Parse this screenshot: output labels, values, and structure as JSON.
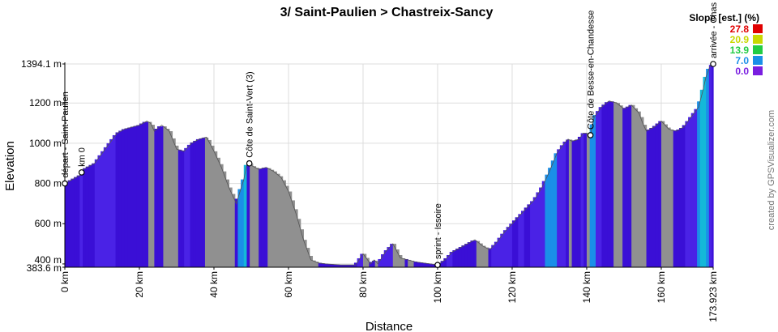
{
  "chart_data": {
    "type": "area",
    "title": "3/ Saint-Paulien > Chastreix-Sancy",
    "xlabel": "Distance",
    "ylabel": "Elevation",
    "xlim": [
      0,
      173.923
    ],
    "ylim": [
      383.6,
      1394.1
    ],
    "x_ticks": [
      {
        "value": 0,
        "label": "0 km"
      },
      {
        "value": 20,
        "label": "20 km"
      },
      {
        "value": 40,
        "label": "40 km"
      },
      {
        "value": 60,
        "label": "60 km"
      },
      {
        "value": 80,
        "label": "80 km"
      },
      {
        "value": 100,
        "label": "100 km"
      },
      {
        "value": 120,
        "label": "120 km"
      },
      {
        "value": 140,
        "label": "140 km"
      },
      {
        "value": 160,
        "label": "160 km"
      },
      {
        "value": 173.923,
        "label": "173.923 km"
      }
    ],
    "y_ticks": [
      {
        "value": 383.6,
        "label": "383.6 m"
      },
      {
        "value": 400,
        "label": "400 m"
      },
      {
        "value": 600,
        "label": "600 m"
      },
      {
        "value": 800,
        "label": "800 m"
      },
      {
        "value": 1000,
        "label": "1000 m"
      },
      {
        "value": 1200,
        "label": "1200 m"
      },
      {
        "value": 1394.1,
        "label": "1394.1 m"
      }
    ],
    "legend": {
      "title": "Slope [est.] (%)",
      "placement": "top-right",
      "items": [
        {
          "label": "27.8",
          "color": "#e00000"
        },
        {
          "label": "20.9",
          "color": "#c8d800"
        },
        {
          "label": "13.9",
          "color": "#22cc44"
        },
        {
          "label": "7.0",
          "color": "#1a8fe8"
        },
        {
          "label": "0.0",
          "color": "#7a1ee0"
        }
      ]
    },
    "profile": {
      "x": [
        0,
        2,
        4,
        5,
        8,
        10,
        12,
        14,
        16,
        18,
        20,
        22,
        23,
        24,
        26,
        28,
        30,
        32,
        34,
        36,
        38,
        40,
        42,
        44,
        45,
        46,
        48,
        49,
        50,
        52,
        54,
        56,
        58,
        60,
        62,
        64,
        66,
        68,
        70,
        74,
        78,
        80,
        82,
        83,
        84,
        86,
        88,
        90,
        94,
        98,
        100,
        102,
        104,
        106,
        108,
        110,
        112,
        114,
        116,
        118,
        120,
        122,
        124,
        126,
        128,
        130,
        132,
        134,
        135,
        136,
        138,
        139,
        140,
        141,
        142,
        144,
        146,
        148,
        150,
        152,
        154,
        155,
        156,
        158,
        160,
        162,
        164,
        166,
        168,
        170,
        171,
        172,
        173,
        173.923
      ],
      "y": [
        800,
        820,
        840,
        870,
        900,
        950,
        1000,
        1050,
        1070,
        1080,
        1090,
        1110,
        1100,
        1060,
        1090,
        1060,
        970,
        960,
        1000,
        1020,
        1030,
        960,
        880,
        780,
        740,
        700,
        820,
        910,
        890,
        870,
        880,
        860,
        830,
        760,
        650,
        520,
        420,
        405,
        400,
        395,
        395,
        450,
        400,
        420,
        400,
        460,
        500,
        430,
        410,
        400,
        395,
        420,
        460,
        480,
        500,
        520,
        490,
        470,
        510,
        560,
        600,
        640,
        680,
        720,
        780,
        860,
        950,
        1000,
        1020,
        1010,
        1020,
        1050,
        1050,
        1040,
        1130,
        1180,
        1210,
        1200,
        1170,
        1190,
        1150,
        1100,
        1060,
        1080,
        1110,
        1070,
        1060,
        1080,
        1130,
        1180,
        1250,
        1330,
        1380,
        1394.1
      ]
    },
    "waypoints": [
      {
        "x": 0,
        "label": "départ - Saint-Paulien"
      },
      {
        "x": 4.5,
        "label": "km 0"
      },
      {
        "x": 49.5,
        "label": "Côte de Saint-Vert (3)"
      },
      {
        "x": 100,
        "label": "sprint - Issoire"
      },
      {
        "x": 141,
        "label": "Côte de Besse-en-Chandesse"
      },
      {
        "x": 173.923,
        "label": "arrivée - Chas"
      }
    ],
    "credit": "created by GPSVisualizer.com"
  }
}
